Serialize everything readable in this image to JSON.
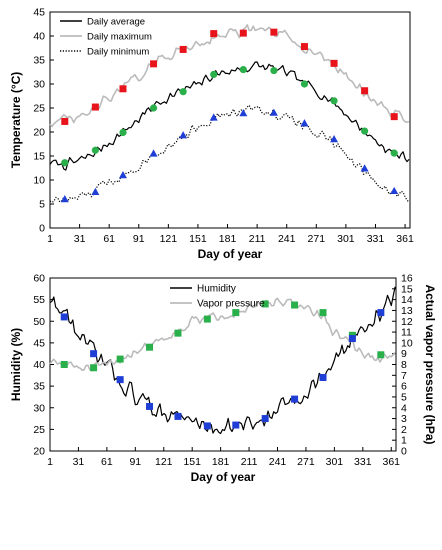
{
  "chart_data": [
    {
      "type": "line",
      "xlabel": "Day of year",
      "ylabel": "Temperature (°C)",
      "xlim": [
        1,
        366
      ],
      "ylim": [
        0,
        45
      ],
      "x_ticks": [
        1,
        31,
        61,
        91,
        121,
        151,
        181,
        211,
        241,
        271,
        301,
        331,
        361
      ],
      "y_ticks": [
        0,
        5,
        10,
        15,
        20,
        25,
        30,
        35,
        40,
        45
      ],
      "legend_position": "top-left",
      "series": [
        {
          "name": "Daily average",
          "color": "#000000",
          "style": "solid",
          "points": [
            [
              1,
              13.6
            ],
            [
              15,
              13.1
            ],
            [
              30,
              13.9
            ],
            [
              45,
              15.5
            ],
            [
              60,
              17.6
            ],
            [
              75,
              20.0
            ],
            [
              90,
              22.5
            ],
            [
              105,
              25.2
            ],
            [
              120,
              27.2
            ],
            [
              135,
              28.5
            ],
            [
              150,
              29.8
            ],
            [
              165,
              31.8
            ],
            [
              180,
              32.6
            ],
            [
              195,
              33.0
            ],
            [
              210,
              33.8
            ],
            [
              225,
              33.3
            ],
            [
              240,
              32.5
            ],
            [
              255,
              30.6
            ],
            [
              270,
              28.8
            ],
            [
              285,
              26.8
            ],
            [
              300,
              24.0
            ],
            [
              315,
              21.0
            ],
            [
              330,
              18.4
            ],
            [
              345,
              16.0
            ],
            [
              366,
              14.4
            ]
          ]
        },
        {
          "name": "Daily maximum",
          "color": "#bbbbbb",
          "style": "solid",
          "points": [
            [
              1,
              22.0
            ],
            [
              15,
              22.4
            ],
            [
              30,
              22.6
            ],
            [
              45,
              24.8
            ],
            [
              60,
              27.0
            ],
            [
              75,
              29.2
            ],
            [
              90,
              31.4
            ],
            [
              105,
              34.0
            ],
            [
              120,
              36.0
            ],
            [
              135,
              37.2
            ],
            [
              150,
              38.4
            ],
            [
              165,
              39.6
            ],
            [
              180,
              40.6
            ],
            [
              195,
              40.8
            ],
            [
              210,
              41.4
            ],
            [
              225,
              40.8
            ],
            [
              240,
              40.0
            ],
            [
              255,
              38.2
            ],
            [
              270,
              36.4
            ],
            [
              285,
              34.6
            ],
            [
              300,
              32.0
            ],
            [
              315,
              29.2
            ],
            [
              330,
              26.6
            ],
            [
              345,
              24.0
            ],
            [
              366,
              22.6
            ]
          ]
        },
        {
          "name": "Daily minimum",
          "color": "#000000",
          "style": "dotted",
          "points": [
            [
              1,
              6.0
            ],
            [
              15,
              5.8
            ],
            [
              30,
              6.2
            ],
            [
              45,
              7.4
            ],
            [
              60,
              9.6
            ],
            [
              75,
              11.0
            ],
            [
              90,
              13.0
            ],
            [
              105,
              15.4
            ],
            [
              120,
              17.0
            ],
            [
              135,
              19.0
            ],
            [
              150,
              21.0
            ],
            [
              165,
              22.8
            ],
            [
              180,
              23.6
            ],
            [
              195,
              24.2
            ],
            [
              210,
              25.0
            ],
            [
              225,
              24.0
            ],
            [
              240,
              23.0
            ],
            [
              255,
              21.8
            ],
            [
              270,
              20.0
            ],
            [
              285,
              18.2
            ],
            [
              300,
              15.4
            ],
            [
              315,
              12.6
            ],
            [
              330,
              10.0
            ],
            [
              345,
              7.8
            ],
            [
              366,
              6.2
            ]
          ]
        }
      ],
      "marker_series": [
        {
          "marker": "square",
          "color": "#e8141b",
          "points": [
            [
              16,
              22.2
            ],
            [
              47,
              25.2
            ],
            [
              75,
              29.0
            ],
            [
              106,
              34.2
            ],
            [
              136,
              37.2
            ],
            [
              167,
              40.5
            ],
            [
              197,
              40.6
            ],
            [
              228,
              40.8
            ],
            [
              259,
              37.8
            ],
            [
              289,
              34.3
            ],
            [
              320,
              28.6
            ],
            [
              350,
              23.2
            ]
          ]
        },
        {
          "marker": "circle",
          "color": "#2ab04a",
          "points": [
            [
              16,
              13.6
            ],
            [
              47,
              16.2
            ],
            [
              75,
              19.9
            ],
            [
              106,
              25.0
            ],
            [
              136,
              28.4
            ],
            [
              167,
              32.0
            ],
            [
              197,
              33.0
            ],
            [
              228,
              32.8
            ],
            [
              259,
              30.0
            ],
            [
              289,
              26.5
            ],
            [
              320,
              20.2
            ],
            [
              350,
              15.6
            ]
          ]
        },
        {
          "marker": "triangle",
          "color": "#1f3ed6",
          "points": [
            [
              16,
              6.0
            ],
            [
              47,
              7.5
            ],
            [
              75,
              11.0
            ],
            [
              106,
              15.5
            ],
            [
              136,
              19.3
            ],
            [
              167,
              23.0
            ],
            [
              197,
              23.9
            ],
            [
              228,
              24.0
            ],
            [
              259,
              21.8
            ],
            [
              289,
              18.5
            ],
            [
              320,
              12.4
            ],
            [
              350,
              7.7
            ]
          ]
        }
      ]
    },
    {
      "type": "line",
      "xlabel": "Day of year",
      "ylabel": "Humidity (%)",
      "y2label": "Actual vapor pressure (hPa)",
      "xlim": [
        1,
        366
      ],
      "ylim": [
        20,
        60
      ],
      "y2lim": [
        0,
        16
      ],
      "x_ticks": [
        1,
        31,
        61,
        91,
        121,
        151,
        181,
        211,
        241,
        271,
        301,
        331,
        361
      ],
      "y_ticks": [
        20,
        25,
        30,
        35,
        40,
        45,
        50,
        55,
        60
      ],
      "y2_ticks": [
        0,
        1,
        2,
        3,
        4,
        5,
        6,
        7,
        8,
        9,
        10,
        11,
        12,
        13,
        14,
        15,
        16
      ],
      "legend_position": "top-center",
      "series": [
        {
          "name": "Humidity",
          "axis": "left",
          "color": "#000000",
          "style": "solid",
          "points": [
            [
              1,
              55.0
            ],
            [
              10,
              53.0
            ],
            [
              20,
              51.0
            ],
            [
              30,
              47.0
            ],
            [
              40,
              44.5
            ],
            [
              50,
              42.0
            ],
            [
              60,
              40.0
            ],
            [
              70,
              37.5
            ],
            [
              80,
              35.0
            ],
            [
              90,
              33.0
            ],
            [
              100,
              31.5
            ],
            [
              110,
              30.0
            ],
            [
              125,
              28.8
            ],
            [
              140,
              27.8
            ],
            [
              155,
              26.5
            ],
            [
              170,
              25.6
            ],
            [
              185,
              25.6
            ],
            [
              200,
              25.8
            ],
            [
              215,
              26.3
            ],
            [
              230,
              27.5
            ],
            [
              245,
              30.0
            ],
            [
              260,
              32.0
            ],
            [
              275,
              34.5
            ],
            [
              290,
              37.5
            ],
            [
              305,
              41.5
            ],
            [
              320,
              46.0
            ],
            [
              335,
              49.0
            ],
            [
              350,
              52.5
            ],
            [
              366,
              56.0
            ]
          ]
        },
        {
          "name": "Vapor pressure",
          "axis": "right",
          "color": "#bbbbbb",
          "style": "solid",
          "points": [
            [
              1,
              8.2
            ],
            [
              15,
              8.0
            ],
            [
              30,
              7.8
            ],
            [
              45,
              7.5
            ],
            [
              60,
              8.0
            ],
            [
              75,
              8.5
            ],
            [
              90,
              9.2
            ],
            [
              105,
              9.8
            ],
            [
              120,
              10.5
            ],
            [
              135,
              11.0
            ],
            [
              150,
              12.0
            ],
            [
              165,
              12.2
            ],
            [
              180,
              12.6
            ],
            [
              195,
              12.8
            ],
            [
              210,
              13.2
            ],
            [
              225,
              13.6
            ],
            [
              240,
              13.6
            ],
            [
              255,
              13.6
            ],
            [
              270,
              13.4
            ],
            [
              285,
              12.6
            ],
            [
              300,
              11.0
            ],
            [
              315,
              10.4
            ],
            [
              330,
              9.0
            ],
            [
              345,
              8.4
            ],
            [
              366,
              8.8
            ]
          ]
        }
      ],
      "marker_series": [
        {
          "marker": "square",
          "color": "#2ab04a",
          "axis": "right",
          "points": [
            [
              16,
              8.0
            ],
            [
              47,
              7.7
            ],
            [
              75,
              8.5
            ],
            [
              106,
              9.6
            ],
            [
              136,
              10.9
            ],
            [
              167,
              12.2
            ],
            [
              197,
              12.8
            ],
            [
              228,
              13.6
            ],
            [
              259,
              13.5
            ],
            [
              289,
              12.8
            ],
            [
              320,
              10.7
            ],
            [
              350,
              8.9
            ]
          ]
        },
        {
          "marker": "square",
          "color": "#1f3ed6",
          "axis": "left",
          "points": [
            [
              16,
              51.0
            ],
            [
              47,
              42.5
            ],
            [
              75,
              36.5
            ],
            [
              106,
              30.3
            ],
            [
              136,
              28.0
            ],
            [
              167,
              25.8
            ],
            [
              197,
              26.0
            ],
            [
              228,
              27.5
            ],
            [
              259,
              32.0
            ],
            [
              289,
              37.0
            ],
            [
              320,
              46.0
            ],
            [
              350,
              52.0
            ]
          ]
        }
      ]
    }
  ]
}
